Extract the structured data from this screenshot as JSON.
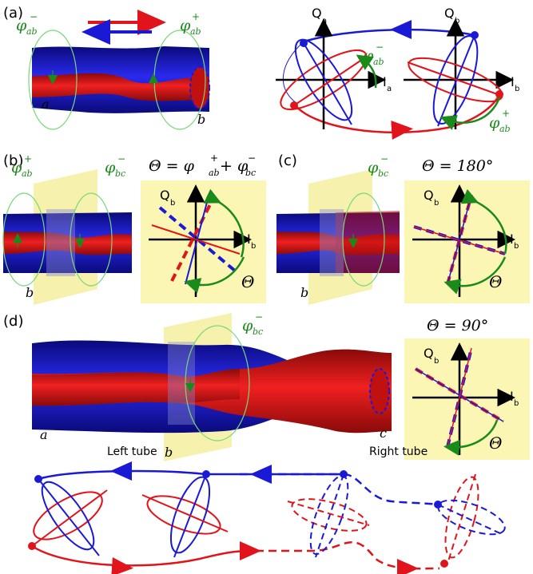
{
  "panels": {
    "a": {
      "label": "(a)",
      "tube_ends": [
        "a",
        "b"
      ],
      "phase_minus": "φ",
      "phase_minus_sub": "ab",
      "phase_minus_sup": "−",
      "phase_plus": "φ",
      "phase_plus_sub": "ab",
      "phase_plus_sup": "+",
      "axis_q_a": "Q",
      "axis_q_a_sub": "a",
      "axis_i_a": "I",
      "axis_i_a_sub": "a",
      "axis_q_b": "Q",
      "axis_q_b_sub": "b",
      "axis_i_b": "I",
      "axis_i_b_sub": "b"
    },
    "b": {
      "label": "(b)",
      "tube_end": "b",
      "equation": "Θ = φ",
      "equation_tail": " + φ",
      "eq_sub1": "ab",
      "eq_sup1": "+",
      "eq_sub2": "bc",
      "eq_sup2": "−",
      "phase_ab": "φ",
      "phase_ab_sub": "ab",
      "phase_ab_sup": "+",
      "phase_bc": "φ",
      "phase_bc_sub": "bc",
      "phase_bc_sup": "−",
      "axis_q": "Q",
      "axis_q_sub": "b",
      "axis_i": "I",
      "axis_i_sub": "b",
      "theta": "Θ"
    },
    "c": {
      "label": "(c)",
      "tube_end": "b",
      "equation": "Θ = 180°",
      "phase_bc": "φ",
      "phase_bc_sub": "bc",
      "phase_bc_sup": "−",
      "axis_q": "Q",
      "axis_q_sub": "b",
      "axis_i": "I",
      "axis_i_sub": "b",
      "theta": "Θ"
    },
    "d": {
      "label": "(d)",
      "tube_ends": [
        "a",
        "b",
        "c"
      ],
      "equation": "Θ = 90°",
      "phase_bc": "φ",
      "phase_bc_sub": "bc",
      "phase_bc_sup": "−",
      "axis_q": "Q",
      "axis_q_sub": "b",
      "axis_i": "I",
      "axis_i_sub": "b",
      "theta": "Θ",
      "left_tube": "Left tube",
      "right_tube": "Right tube"
    }
  },
  "colors": {
    "blue": "#1a1ad6",
    "red": "#e0141a",
    "green": "#1a8a1a",
    "light_green": "#7ad67a",
    "yellow_panel": "#fbf6b4",
    "plane": "#f5f0a0"
  }
}
